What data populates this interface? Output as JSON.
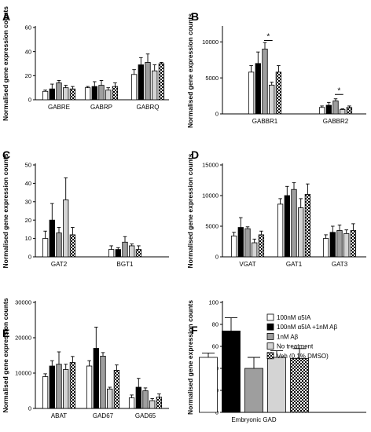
{
  "figure": {
    "series": [
      "100nM α5IA",
      "100nM α5IA +1nM Aβ",
      "1nM Aβ",
      "No treatment",
      "Veh (0.1% DMSO)"
    ],
    "series_fills": [
      "#ffffff",
      "#000000",
      "#9e9e9e",
      "#d4d4d4",
      "checker"
    ],
    "legend_position": "panel-F-top-right"
  },
  "chart_data": [
    {
      "panel": "A",
      "type": "bar",
      "ylabel": "Normalised gene expression counts",
      "ylim": [
        0,
        60
      ],
      "yticks": [
        0,
        20,
        40,
        60
      ],
      "ytick_labels": [
        "0",
        "20",
        "40",
        "60"
      ],
      "categories": [
        "GABRE",
        "GABRP",
        "GABRQ"
      ],
      "series": [
        {
          "name": "100nM α5IA",
          "values": [
            7,
            10,
            21
          ],
          "errors": [
            1,
            1,
            4
          ]
        },
        {
          "name": "100nM α5IA +1nM Aβ",
          "values": [
            9,
            11,
            29
          ],
          "errors": [
            4,
            4,
            6
          ]
        },
        {
          "name": "1nM Aβ",
          "values": [
            14,
            12,
            31
          ],
          "errors": [
            2,
            4,
            7
          ]
        },
        {
          "name": "No treatment",
          "values": [
            10,
            8,
            24
          ],
          "errors": [
            2,
            2,
            5
          ]
        },
        {
          "name": "Veh (0.1% DMSO)",
          "values": [
            9,
            11,
            30
          ],
          "errors": [
            2,
            3,
            1
          ]
        }
      ],
      "significance": []
    },
    {
      "panel": "B",
      "type": "bar",
      "ylabel": "Normalised gene expression counts",
      "ylim": [
        0,
        12000
      ],
      "yticks": [
        0,
        5000,
        10000
      ],
      "ytick_labels": [
        "0",
        "5000",
        "10000"
      ],
      "categories": [
        "GABBR1",
        "GABBR2"
      ],
      "series": [
        {
          "name": "100nM α5IA",
          "values": [
            5800,
            900
          ],
          "errors": [
            900,
            200
          ]
        },
        {
          "name": "100nM α5IA +1nM Aβ",
          "values": [
            7000,
            1200
          ],
          "errors": [
            1600,
            400
          ]
        },
        {
          "name": "1nM Aβ",
          "values": [
            9000,
            1800
          ],
          "errors": [
            900,
            300
          ]
        },
        {
          "name": "No treatment",
          "values": [
            4000,
            600
          ],
          "errors": [
            400,
            100
          ]
        },
        {
          "name": "Veh (0.1% DMSO)",
          "values": [
            5800,
            900
          ],
          "errors": [
            900,
            200
          ]
        }
      ],
      "significance": [
        {
          "category": 0,
          "from": 2,
          "to": 3,
          "label": "*",
          "y": 10200
        },
        {
          "category": 1,
          "from": 2,
          "to": 3,
          "label": "*",
          "y": 2700
        }
      ]
    },
    {
      "panel": "C",
      "type": "bar",
      "ylabel": "Normalised gene expression counts",
      "ylim": [
        0,
        50
      ],
      "yticks": [
        0,
        10,
        20,
        30,
        40,
        50
      ],
      "ytick_labels": [
        "0",
        "10",
        "20",
        "30",
        "40",
        "50"
      ],
      "categories": [
        "GAT2",
        "BGT1"
      ],
      "series": [
        {
          "name": "100nM α5IA",
          "values": [
            10,
            4
          ],
          "errors": [
            4,
            2
          ]
        },
        {
          "name": "100nM α5IA +1nM Aβ",
          "values": [
            20,
            4
          ],
          "errors": [
            9,
            1
          ]
        },
        {
          "name": "1nM Aβ",
          "values": [
            13,
            8
          ],
          "errors": [
            3,
            3
          ]
        },
        {
          "name": "No treatment",
          "values": [
            31,
            6
          ],
          "errors": [
            12,
            1
          ]
        },
        {
          "name": "Veh (0.1% DMSO)",
          "values": [
            12,
            4
          ],
          "errors": [
            4,
            2
          ]
        }
      ],
      "significance": []
    },
    {
      "panel": "D",
      "type": "bar",
      "ylabel": "Normalised gene expression counts",
      "ylim": [
        0,
        15000
      ],
      "yticks": [
        0,
        5000,
        10000,
        15000
      ],
      "ytick_labels": [
        "0",
        "5000",
        "10000",
        "15000"
      ],
      "categories": [
        "VGAT",
        "GAT1",
        "GAT3"
      ],
      "series": [
        {
          "name": "100nM α5IA",
          "values": [
            3400,
            8600,
            3000
          ],
          "errors": [
            600,
            900,
            600
          ]
        },
        {
          "name": "100nM α5IA +1nM Aβ",
          "values": [
            4800,
            10000,
            4000
          ],
          "errors": [
            1600,
            1500,
            1000
          ]
        },
        {
          "name": "1nM Aβ",
          "values": [
            4600,
            11000,
            4300
          ],
          "errors": [
            300,
            1100,
            900
          ]
        },
        {
          "name": "No treatment",
          "values": [
            2300,
            8000,
            3800
          ],
          "errors": [
            600,
            1500,
            600
          ]
        },
        {
          "name": "Veh (0.1% DMSO)",
          "values": [
            3600,
            10200,
            4300
          ],
          "errors": [
            600,
            1700,
            1100
          ]
        }
      ],
      "significance": []
    },
    {
      "panel": "E",
      "type": "bar",
      "ylabel": "Normalised gene expression counts",
      "ylim": [
        0,
        30000
      ],
      "yticks": [
        0,
        10000,
        20000,
        30000
      ],
      "ytick_labels": [
        "0",
        "10000",
        "20000",
        "30000"
      ],
      "categories": [
        "ABAT",
        "GAD67",
        "GAD65"
      ],
      "series": [
        {
          "name": "100nM α5IA",
          "values": [
            9000,
            12000,
            3000
          ],
          "errors": [
            800,
            1500,
            800
          ]
        },
        {
          "name": "100nM α5IA +1nM Aβ",
          "values": [
            12000,
            17000,
            6000
          ],
          "errors": [
            1500,
            6000,
            2500
          ]
        },
        {
          "name": "1nM Aβ",
          "values": [
            12500,
            14800,
            5000
          ],
          "errors": [
            3500,
            1000,
            800
          ]
        },
        {
          "name": "No treatment",
          "values": [
            11000,
            5500,
            2200
          ],
          "errors": [
            1500,
            500,
            600
          ]
        },
        {
          "name": "Veh (0.1% DMSO)",
          "values": [
            13000,
            10800,
            3200
          ],
          "errors": [
            1700,
            1500,
            900
          ]
        }
      ],
      "significance": []
    },
    {
      "panel": "F",
      "type": "bar",
      "ylabel": "Normalised gene expression counts",
      "ylim": [
        0,
        100
      ],
      "yticks": [
        0,
        20,
        40,
        60,
        80,
        100
      ],
      "ytick_labels": [
        "0",
        "20",
        "40",
        "60",
        "80",
        "100"
      ],
      "categories": [
        "Embryonic GAD"
      ],
      "series": [
        {
          "name": "100nM α5IA",
          "values": [
            50
          ],
          "errors": [
            4
          ]
        },
        {
          "name": "100nM α5IA +1nM Aβ",
          "values": [
            74
          ],
          "errors": [
            12
          ]
        },
        {
          "name": "1nM Aβ",
          "values": [
            40
          ],
          "errors": [
            10
          ]
        },
        {
          "name": "No treatment",
          "values": [
            50
          ],
          "errors": [
            6
          ]
        },
        {
          "name": "Veh (0.1% DMSO)",
          "values": [
            49
          ],
          "errors": [
            9
          ]
        }
      ],
      "significance": []
    }
  ]
}
